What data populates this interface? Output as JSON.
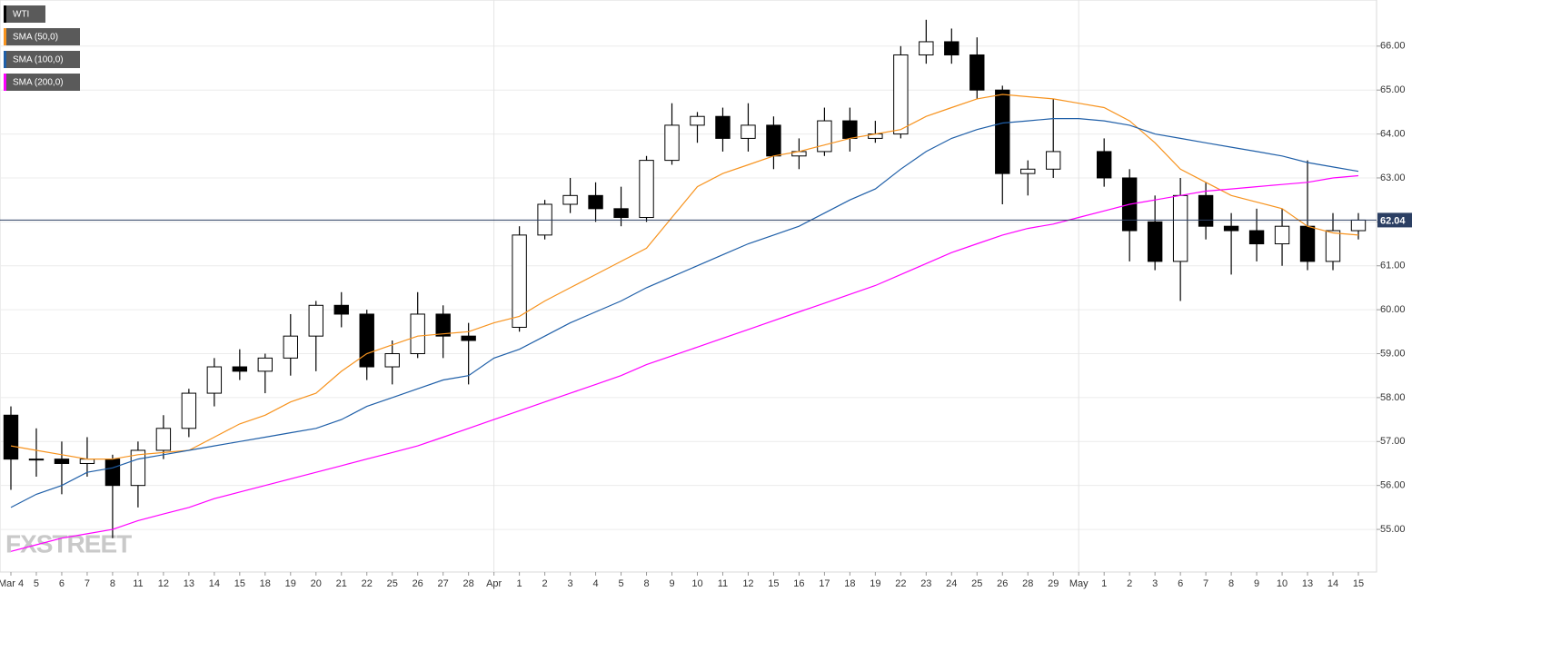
{
  "chart_data": {
    "type": "candlestick",
    "watermark": "FXSTREET",
    "categories": [
      "Mar 4",
      "5",
      "6",
      "7",
      "8",
      "11",
      "12",
      "13",
      "14",
      "15",
      "18",
      "19",
      "20",
      "21",
      "22",
      "25",
      "26",
      "27",
      "28",
      "Apr",
      "1",
      "2",
      "3",
      "4",
      "5",
      "8",
      "9",
      "10",
      "11",
      "12",
      "15",
      "16",
      "17",
      "18",
      "19",
      "22",
      "23",
      "24",
      "25",
      "26",
      "28",
      "29",
      "May",
      "1",
      "2",
      "3",
      "6",
      "7",
      "8",
      "9",
      "10",
      "13",
      "14",
      "15"
    ],
    "ohlc": {
      "name": "WTI",
      "color": "#000000",
      "open": [
        57.6,
        56.6,
        56.6,
        56.5,
        56.6,
        56.0,
        56.8,
        57.3,
        58.1,
        58.7,
        58.6,
        58.9,
        59.4,
        60.1,
        59.9,
        58.7,
        59.0,
        59.9,
        59.4,
        null,
        59.6,
        61.7,
        62.4,
        62.6,
        62.3,
        62.1,
        63.4,
        64.2,
        64.4,
        63.9,
        64.2,
        63.5,
        63.6,
        64.3,
        63.9,
        64.0,
        65.8,
        66.1,
        65.8,
        65.0,
        63.1,
        63.2,
        null,
        63.6,
        63.0,
        62.0,
        61.1,
        62.6,
        61.9,
        61.8,
        61.5,
        61.9,
        61.1,
        61.8
      ],
      "high": [
        57.8,
        57.3,
        57.0,
        57.1,
        56.7,
        57.0,
        57.6,
        58.2,
        58.9,
        59.1,
        59.0,
        59.9,
        60.2,
        60.4,
        60.0,
        59.3,
        60.4,
        60.1,
        59.7,
        null,
        61.9,
        62.5,
        63.0,
        62.9,
        62.8,
        63.5,
        64.7,
        64.5,
        64.6,
        64.7,
        64.4,
        63.9,
        64.6,
        64.6,
        64.3,
        66.0,
        66.6,
        66.4,
        66.2,
        65.1,
        63.4,
        64.8,
        null,
        63.9,
        63.2,
        62.6,
        63.0,
        62.9,
        62.2,
        62.3,
        62.3,
        63.4,
        62.2,
        62.2
      ],
      "low": [
        55.9,
        56.2,
        55.8,
        56.2,
        54.8,
        55.5,
        56.6,
        57.1,
        57.8,
        58.4,
        58.1,
        58.5,
        58.6,
        59.6,
        58.4,
        58.3,
        58.9,
        58.9,
        58.3,
        null,
        59.5,
        61.6,
        62.2,
        62.0,
        61.9,
        62.0,
        63.3,
        63.8,
        63.6,
        63.6,
        63.2,
        63.2,
        63.5,
        63.6,
        63.8,
        63.9,
        65.6,
        65.6,
        64.8,
        62.4,
        62.6,
        63.0,
        null,
        62.8,
        61.1,
        60.9,
        60.2,
        61.6,
        60.8,
        61.1,
        61.0,
        60.9,
        60.9,
        61.6
      ],
      "close": [
        56.6,
        56.6,
        56.5,
        56.6,
        56.0,
        56.8,
        57.3,
        58.1,
        58.7,
        58.6,
        58.9,
        59.4,
        60.1,
        59.9,
        58.7,
        59.0,
        59.9,
        59.4,
        59.3,
        null,
        61.7,
        62.4,
        62.6,
        62.3,
        62.1,
        63.4,
        64.2,
        64.4,
        63.9,
        64.2,
        63.5,
        63.6,
        64.3,
        63.9,
        64.0,
        65.8,
        66.1,
        65.8,
        65.0,
        63.1,
        63.2,
        63.6,
        null,
        63.0,
        61.8,
        61.1,
        62.6,
        61.9,
        61.8,
        61.5,
        61.9,
        61.1,
        61.8,
        62.04
      ]
    },
    "series": [
      {
        "name": "SMA (50,0)",
        "color": "#f7931e",
        "values": [
          56.9,
          56.8,
          56.7,
          56.6,
          56.6,
          56.7,
          56.75,
          56.8,
          57.1,
          57.4,
          57.6,
          57.9,
          58.1,
          58.6,
          59.0,
          59.2,
          59.4,
          59.45,
          59.5,
          59.7,
          59.85,
          60.2,
          60.5,
          60.8,
          61.1,
          61.4,
          62.1,
          62.8,
          63.1,
          63.3,
          63.5,
          63.6,
          63.75,
          63.9,
          64.0,
          64.1,
          64.4,
          64.6,
          64.8,
          64.9,
          64.85,
          64.8,
          64.7,
          64.6,
          64.3,
          63.8,
          63.2,
          62.9,
          62.6,
          62.45,
          62.3,
          61.9,
          61.75,
          61.7
        ]
      },
      {
        "name": "SMA (100,0)",
        "color": "#1f5fa8",
        "values": [
          55.5,
          55.8,
          56.0,
          56.3,
          56.4,
          56.6,
          56.7,
          56.8,
          56.9,
          57.0,
          57.1,
          57.2,
          57.3,
          57.5,
          57.8,
          58.0,
          58.2,
          58.4,
          58.5,
          58.9,
          59.1,
          59.4,
          59.7,
          59.95,
          60.2,
          60.5,
          60.75,
          61.0,
          61.25,
          61.5,
          61.7,
          61.9,
          62.2,
          62.5,
          62.75,
          63.2,
          63.6,
          63.9,
          64.1,
          64.25,
          64.3,
          64.35,
          64.35,
          64.3,
          64.2,
          64.0,
          63.9,
          63.8,
          63.7,
          63.6,
          63.5,
          63.35,
          63.25,
          63.15
        ]
      },
      {
        "name": "SMA (200,0)",
        "color": "#ff00ff",
        "values": [
          54.5,
          54.65,
          54.8,
          54.9,
          55.0,
          55.2,
          55.35,
          55.5,
          55.7,
          55.85,
          56.0,
          56.15,
          56.3,
          56.45,
          56.6,
          56.75,
          56.9,
          57.1,
          57.3,
          57.5,
          57.7,
          57.9,
          58.1,
          58.3,
          58.5,
          58.75,
          58.95,
          59.15,
          59.35,
          59.55,
          59.75,
          59.95,
          60.15,
          60.35,
          60.55,
          60.8,
          61.05,
          61.3,
          61.5,
          61.7,
          61.85,
          61.95,
          62.1,
          62.25,
          62.4,
          62.5,
          62.6,
          62.7,
          62.75,
          62.8,
          62.85,
          62.9,
          63.0,
          63.05
        ]
      }
    ],
    "last_price": 62.04,
    "ylim": [
      54.03,
      67.05
    ],
    "yticks": [
      {
        "value": 55,
        "label": "55.00"
      },
      {
        "value": 56,
        "label": "56.00"
      },
      {
        "value": 57,
        "label": "57.00"
      },
      {
        "value": 58,
        "label": "58.00"
      },
      {
        "value": 59,
        "label": "59.00"
      },
      {
        "value": 60,
        "label": "60.00"
      },
      {
        "value": 61,
        "label": "61.00"
      },
      {
        "value": 62,
        "label": "62.00"
      },
      {
        "value": 63,
        "label": "63.00"
      },
      {
        "value": 64,
        "label": "64.00"
      },
      {
        "value": 65,
        "label": "65.00"
      },
      {
        "value": 66,
        "label": "66.00"
      }
    ],
    "grid": true
  }
}
